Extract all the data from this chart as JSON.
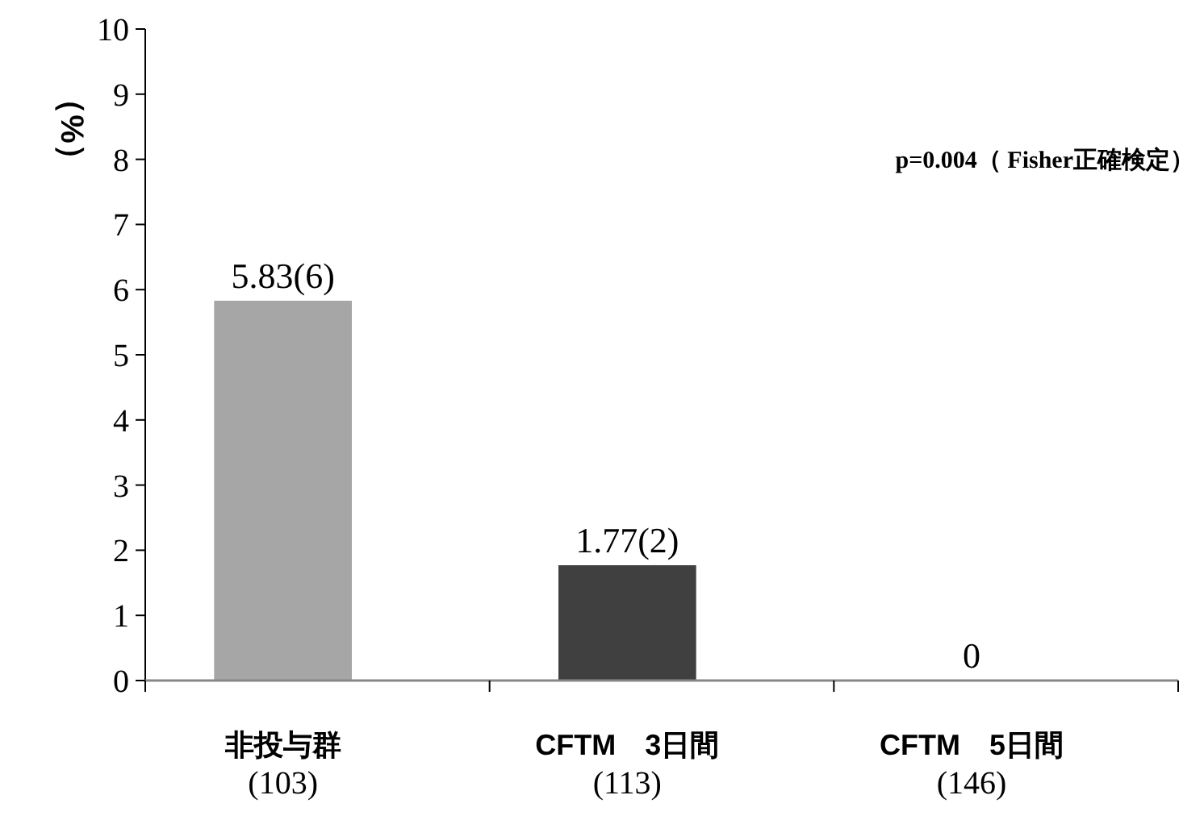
{
  "chart_data": {
    "type": "bar",
    "ylabel": "（%）",
    "categories": [
      "非投与群\n(103)",
      "CFTM　3日間\n(113)",
      "CFTM　5日間\n(146)"
    ],
    "values": [
      5.83,
      1.77,
      0
    ],
    "colors": [
      "#a6a6a6",
      "#404040",
      "#404040"
    ],
    "value_labels": [
      "5.83(6)",
      "1.77(2)",
      "0"
    ],
    "ylim": [
      0,
      10
    ],
    "yticks": [
      0,
      1,
      2,
      3,
      4,
      5,
      6,
      7,
      8,
      9,
      10
    ],
    "grid": false,
    "annotations": [
      "p=0.004（ Fisher正確検定）"
    ]
  }
}
